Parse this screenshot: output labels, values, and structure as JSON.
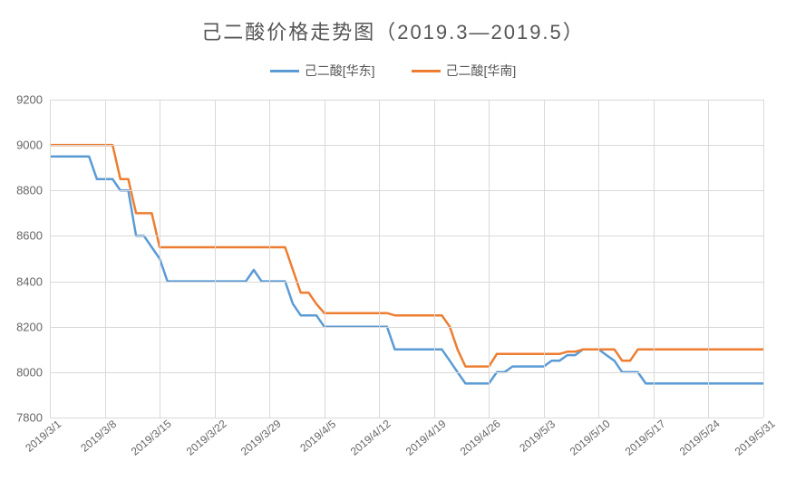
{
  "title": "己二酸价格走势图（2019.3—2019.5）",
  "title_fontsize": 22,
  "title_color": "#555555",
  "background_color": "#ffffff",
  "grid_color": "#d9d9d9",
  "axis_label_color": "#666666",
  "axis_label_fontsize": 13,
  "x_label_fontsize": 12,
  "x_label_rotation_deg": -40,
  "y_axis": {
    "min": 7800,
    "max": 9200,
    "step": 200,
    "ticks": [
      7800,
      8000,
      8200,
      8400,
      8600,
      8800,
      9000,
      9200
    ]
  },
  "x_ticks": {
    "labels": [
      "2019/3/1",
      "2019/3/8",
      "2019/3/15",
      "2019/3/22",
      "2019/3/29",
      "2019/4/5",
      "2019/4/12",
      "2019/4/19",
      "2019/4/26",
      "2019/5/3",
      "2019/5/10",
      "2019/5/17",
      "2019/5/24",
      "2019/5/31"
    ],
    "index_step": 7,
    "total_points": 92
  },
  "legend": {
    "items": [
      {
        "label": "己二酸[华东]",
        "color": "#5B9BD5"
      },
      {
        "label": "己二酸[华南]",
        "color": "#ED7D31"
      }
    ]
  },
  "series": [
    {
      "name": "己二酸[华东]",
      "color": "#5B9BD5",
      "line_width": 2.5,
      "values": [
        8950,
        8950,
        8950,
        8950,
        8950,
        8950,
        8850,
        8850,
        8850,
        8800,
        8800,
        8600,
        8600,
        8550,
        8500,
        8400,
        8400,
        8400,
        8400,
        8400,
        8400,
        8400,
        8400,
        8400,
        8400,
        8400,
        8450,
        8400,
        8400,
        8400,
        8400,
        8300,
        8250,
        8250,
        8250,
        8200,
        8200,
        8200,
        8200,
        8200,
        8200,
        8200,
        8200,
        8200,
        8100,
        8100,
        8100,
        8100,
        8100,
        8100,
        8100,
        8050,
        8000,
        7950,
        7950,
        7950,
        7950,
        8000,
        8000,
        8025,
        8025,
        8025,
        8025,
        8025,
        8050,
        8050,
        8075,
        8075,
        8100,
        8100,
        8100,
        8075,
        8050,
        8000,
        8000,
        8000,
        7950,
        7950,
        7950,
        7950,
        7950,
        7950,
        7950,
        7950,
        7950,
        7950,
        7950,
        7950,
        7950,
        7950,
        7950,
        7950
      ]
    },
    {
      "name": "己二酸[华南]",
      "color": "#ED7D31",
      "line_width": 2.5,
      "values": [
        9000,
        9000,
        9000,
        9000,
        9000,
        9000,
        9000,
        9000,
        9000,
        8850,
        8850,
        8700,
        8700,
        8700,
        8550,
        8550,
        8550,
        8550,
        8550,
        8550,
        8550,
        8550,
        8550,
        8550,
        8550,
        8550,
        8550,
        8550,
        8550,
        8550,
        8550,
        8450,
        8350,
        8350,
        8300,
        8260,
        8260,
        8260,
        8260,
        8260,
        8260,
        8260,
        8260,
        8260,
        8250,
        8250,
        8250,
        8250,
        8250,
        8250,
        8250,
        8200,
        8100,
        8025,
        8025,
        8025,
        8025,
        8080,
        8080,
        8080,
        8080,
        8080,
        8080,
        8080,
        8080,
        8080,
        8090,
        8090,
        8100,
        8100,
        8100,
        8100,
        8100,
        8050,
        8050,
        8100,
        8100,
        8100,
        8100,
        8100,
        8100,
        8100,
        8100,
        8100,
        8100,
        8100,
        8100,
        8100,
        8100,
        8100,
        8100,
        8100
      ]
    }
  ]
}
